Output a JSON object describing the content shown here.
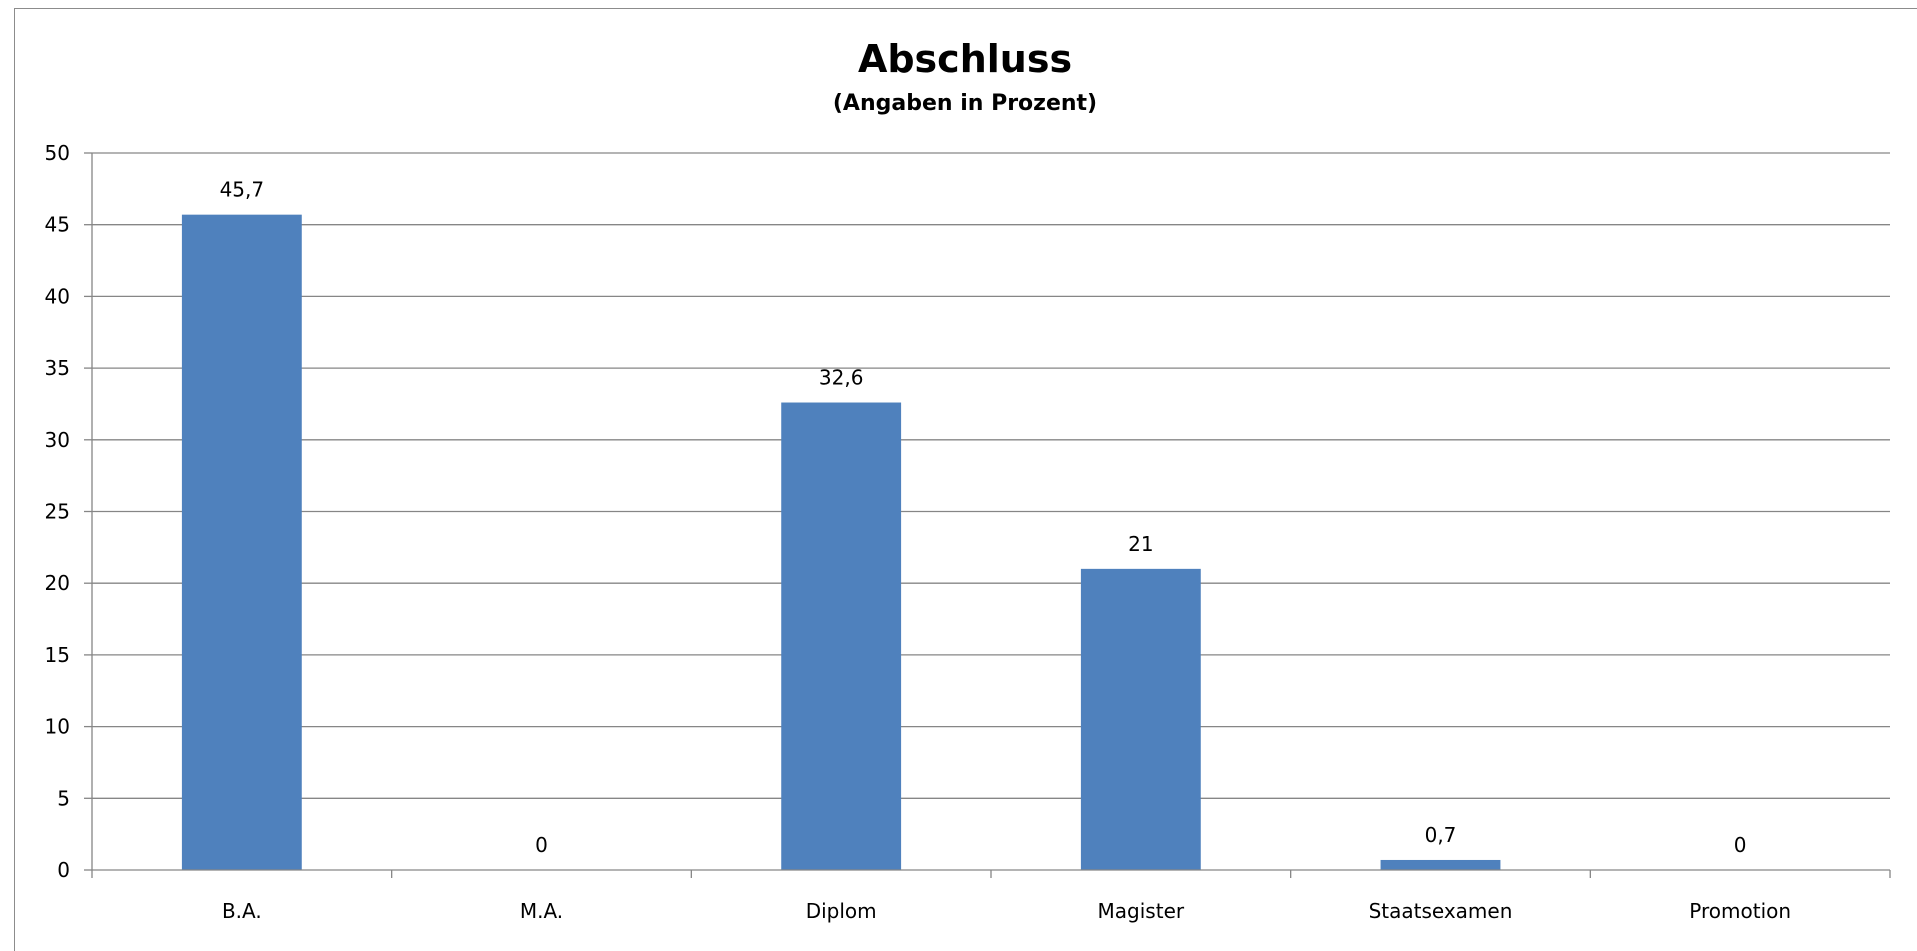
{
  "chart_data": {
    "type": "bar",
    "title": "Abschluss",
    "subtitle": "(Angaben in Prozent)",
    "categories": [
      "B.A.",
      "M.A.",
      "Diplom",
      "Magister",
      "Staatsexamen",
      "Promotion"
    ],
    "values": [
      45.7,
      0,
      32.6,
      21,
      0.7,
      0
    ],
    "data_labels": [
      "45,7",
      "0",
      "32,6",
      "21",
      "0,7",
      "0"
    ],
    "y_ticks": [
      0,
      5,
      10,
      15,
      20,
      25,
      30,
      35,
      40,
      45,
      50
    ],
    "ylim": [
      0,
      50
    ],
    "grid": true,
    "legend": "none",
    "bar_color": "#4f81bd",
    "grid_color": "#868686"
  }
}
